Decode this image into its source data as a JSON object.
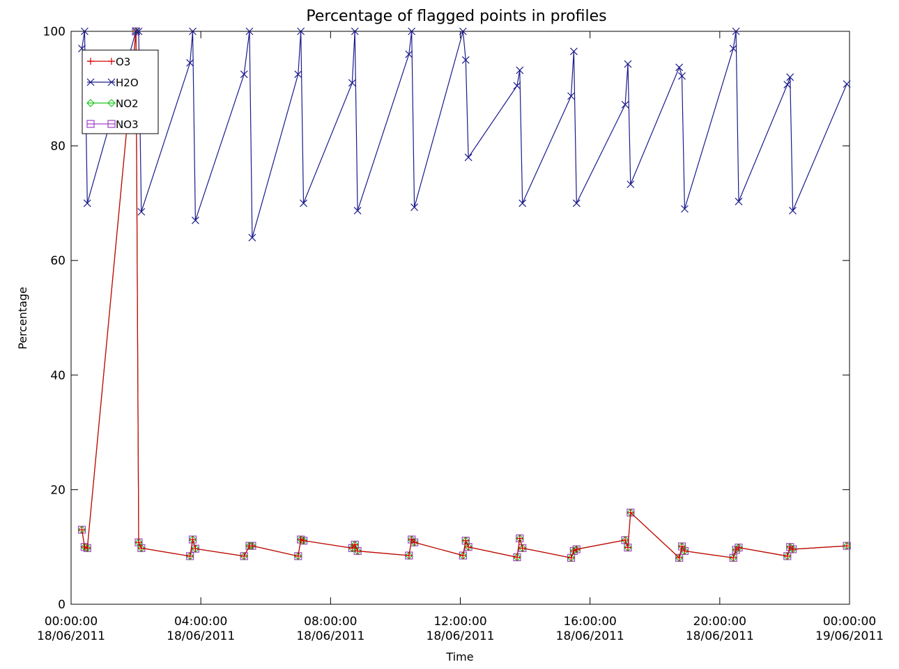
{
  "chart_data": {
    "type": "line",
    "title": "Percentage of flagged points in profiles",
    "xlabel": "Time",
    "ylabel": "Percentage",
    "ylim": [
      0,
      100
    ],
    "xlim": [
      "2011-06-18 00:00",
      "2011-06-19 00:00"
    ],
    "grid": false,
    "legend_position": "top-left",
    "x_ticks": [
      {
        "value": "2011-06-18 00:00",
        "line1": "00:00:00",
        "line2": "18/06/2011"
      },
      {
        "value": "2011-06-18 04:00",
        "line1": "04:00:00",
        "line2": "18/06/2011"
      },
      {
        "value": "2011-06-18 08:00",
        "line1": "08:00:00",
        "line2": "18/06/2011"
      },
      {
        "value": "2011-06-18 12:00",
        "line1": "12:00:00",
        "line2": "18/06/2011"
      },
      {
        "value": "2011-06-18 16:00",
        "line1": "16:00:00",
        "line2": "18/06/2011"
      },
      {
        "value": "2011-06-18 20:00",
        "line1": "20:00:00",
        "line2": "18/06/2011"
      },
      {
        "value": "2011-06-19 00:00",
        "line1": "00:00:00",
        "line2": "19/06/2011"
      }
    ],
    "y_ticks": [
      0,
      20,
      40,
      60,
      80,
      100
    ],
    "series": [
      {
        "name": "O3",
        "color": "#d40000",
        "marker": "plus",
        "points": [
          [
            "2011-06-18 00:20",
            13
          ],
          [
            "2011-06-18 00:25",
            10
          ],
          [
            "2011-06-18 00:30",
            9.8
          ],
          [
            "2011-06-18 02:00",
            100
          ],
          [
            "2011-06-18 02:05",
            10.8
          ],
          [
            "2011-06-18 02:10",
            9.8
          ],
          [
            "2011-06-18 03:40",
            8.4
          ],
          [
            "2011-06-18 03:45",
            11.3
          ],
          [
            "2011-06-18 03:50",
            9.7
          ],
          [
            "2011-06-18 05:20",
            8.4
          ],
          [
            "2011-06-18 05:30",
            10.2
          ],
          [
            "2011-06-18 05:35",
            10.2
          ],
          [
            "2011-06-18 07:00",
            8.4
          ],
          [
            "2011-06-18 07:05",
            11.3
          ],
          [
            "2011-06-18 07:10",
            11.1
          ],
          [
            "2011-06-18 08:40",
            9.8
          ],
          [
            "2011-06-18 08:45",
            10.4
          ],
          [
            "2011-06-18 08:50",
            9.3
          ],
          [
            "2011-06-18 10:25",
            8.5
          ],
          [
            "2011-06-18 10:30",
            11.3
          ],
          [
            "2011-06-18 10:35",
            10.8
          ],
          [
            "2011-06-18 12:05",
            8.5
          ],
          [
            "2011-06-18 12:10",
            11.1
          ],
          [
            "2011-06-18 12:15",
            10
          ],
          [
            "2011-06-18 13:45",
            8.2
          ],
          [
            "2011-06-18 13:50",
            11.5
          ],
          [
            "2011-06-18 13:55",
            9.8
          ],
          [
            "2011-06-18 15:25",
            8.1
          ],
          [
            "2011-06-18 15:30",
            9.3
          ],
          [
            "2011-06-18 15:35",
            9.6
          ],
          [
            "2011-06-18 17:05",
            11.2
          ],
          [
            "2011-06-18 17:10",
            9.9
          ],
          [
            "2011-06-18 17:15",
            16
          ],
          [
            "2011-06-18 18:45",
            8.1
          ],
          [
            "2011-06-18 18:50",
            10.1
          ],
          [
            "2011-06-18 18:55",
            9.3
          ],
          [
            "2011-06-18 20:25",
            8.1
          ],
          [
            "2011-06-18 20:30",
            9.5
          ],
          [
            "2011-06-18 20:35",
            9.9
          ],
          [
            "2011-06-18 22:05",
            8.4
          ],
          [
            "2011-06-18 22:10",
            10
          ],
          [
            "2011-06-18 22:15",
            9.6
          ],
          [
            "2011-06-18 23:55",
            10.2
          ]
        ]
      },
      {
        "name": "H2O",
        "color": "#1a1a8c",
        "marker": "x",
        "points": [
          [
            "2011-06-18 00:20",
            97
          ],
          [
            "2011-06-18 00:25",
            100
          ],
          [
            "2011-06-18 00:30",
            70
          ],
          [
            "2011-06-18 02:00",
            100
          ],
          [
            "2011-06-18 02:05",
            100
          ],
          [
            "2011-06-18 02:10",
            68.5
          ],
          [
            "2011-06-18 03:40",
            94.5
          ],
          [
            "2011-06-18 03:45",
            100
          ],
          [
            "2011-06-18 03:50",
            67
          ],
          [
            "2011-06-18 05:20",
            92.5
          ],
          [
            "2011-06-18 05:30",
            100
          ],
          [
            "2011-06-18 05:35",
            64
          ],
          [
            "2011-06-18 07:00",
            92.5
          ],
          [
            "2011-06-18 07:05",
            100
          ],
          [
            "2011-06-18 07:10",
            70
          ],
          [
            "2011-06-18 08:40",
            91
          ],
          [
            "2011-06-18 08:45",
            100
          ],
          [
            "2011-06-18 08:50",
            68.7
          ],
          [
            "2011-06-18 10:25",
            96
          ],
          [
            "2011-06-18 10:30",
            100
          ],
          [
            "2011-06-18 10:35",
            69.3
          ],
          [
            "2011-06-18 12:05",
            100
          ],
          [
            "2011-06-18 12:10",
            95
          ],
          [
            "2011-06-18 12:15",
            78
          ],
          [
            "2011-06-18 13:45",
            90.5
          ],
          [
            "2011-06-18 13:50",
            93.2
          ],
          [
            "2011-06-18 13:55",
            70
          ],
          [
            "2011-06-18 15:25",
            88.7
          ],
          [
            "2011-06-18 15:30",
            96.5
          ],
          [
            "2011-06-18 15:35",
            70
          ],
          [
            "2011-06-18 17:05",
            87.2
          ],
          [
            "2011-06-18 17:10",
            94.3
          ],
          [
            "2011-06-18 17:15",
            73.3
          ],
          [
            "2011-06-18 18:45",
            93.7
          ],
          [
            "2011-06-18 18:50",
            92.2
          ],
          [
            "2011-06-18 18:55",
            69
          ],
          [
            "2011-06-18 20:25",
            97
          ],
          [
            "2011-06-18 20:30",
            100
          ],
          [
            "2011-06-18 20:35",
            70.3
          ],
          [
            "2011-06-18 22:05",
            90.7
          ],
          [
            "2011-06-18 22:10",
            92
          ],
          [
            "2011-06-18 22:15",
            68.7
          ],
          [
            "2011-06-18 23:55",
            90.8
          ]
        ]
      },
      {
        "name": "NO2",
        "color": "#22c422",
        "marker": "diamond",
        "points": [
          [
            "2011-06-18 00:20",
            13
          ],
          [
            "2011-06-18 00:25",
            10
          ],
          [
            "2011-06-18 00:30",
            9.8
          ],
          [
            "2011-06-18 02:00",
            100
          ],
          [
            "2011-06-18 02:05",
            10.8
          ],
          [
            "2011-06-18 02:10",
            9.8
          ],
          [
            "2011-06-18 03:40",
            8.4
          ],
          [
            "2011-06-18 03:45",
            11.3
          ],
          [
            "2011-06-18 03:50",
            9.7
          ],
          [
            "2011-06-18 05:20",
            8.4
          ],
          [
            "2011-06-18 05:30",
            10.2
          ],
          [
            "2011-06-18 05:35",
            10.2
          ],
          [
            "2011-06-18 07:00",
            8.4
          ],
          [
            "2011-06-18 07:05",
            11.3
          ],
          [
            "2011-06-18 07:10",
            11.1
          ],
          [
            "2011-06-18 08:40",
            9.8
          ],
          [
            "2011-06-18 08:45",
            10.4
          ],
          [
            "2011-06-18 08:50",
            9.3
          ],
          [
            "2011-06-18 10:25",
            8.5
          ],
          [
            "2011-06-18 10:30",
            11.3
          ],
          [
            "2011-06-18 10:35",
            10.8
          ],
          [
            "2011-06-18 12:05",
            8.5
          ],
          [
            "2011-06-18 12:10",
            11.1
          ],
          [
            "2011-06-18 12:15",
            10
          ],
          [
            "2011-06-18 13:45",
            8.2
          ],
          [
            "2011-06-18 13:50",
            11.5
          ],
          [
            "2011-06-18 13:55",
            9.8
          ],
          [
            "2011-06-18 15:25",
            8.1
          ],
          [
            "2011-06-18 15:30",
            9.3
          ],
          [
            "2011-06-18 15:35",
            9.6
          ],
          [
            "2011-06-18 17:05",
            11.2
          ],
          [
            "2011-06-18 17:10",
            9.9
          ],
          [
            "2011-06-18 17:15",
            16
          ],
          [
            "2011-06-18 18:45",
            8.1
          ],
          [
            "2011-06-18 18:50",
            10.1
          ],
          [
            "2011-06-18 18:55",
            9.3
          ],
          [
            "2011-06-18 20:25",
            8.1
          ],
          [
            "2011-06-18 20:30",
            9.5
          ],
          [
            "2011-06-18 20:35",
            9.9
          ],
          [
            "2011-06-18 22:05",
            8.4
          ],
          [
            "2011-06-18 22:10",
            10
          ],
          [
            "2011-06-18 22:15",
            9.6
          ],
          [
            "2011-06-18 23:55",
            10.2
          ]
        ]
      },
      {
        "name": "NO3",
        "color": "#a040c8",
        "marker": "square",
        "points": [
          [
            "2011-06-18 00:20",
            13
          ],
          [
            "2011-06-18 00:25",
            10
          ],
          [
            "2011-06-18 00:30",
            9.8
          ],
          [
            "2011-06-18 02:00",
            100
          ],
          [
            "2011-06-18 02:05",
            10.8
          ],
          [
            "2011-06-18 02:10",
            9.8
          ],
          [
            "2011-06-18 03:40",
            8.4
          ],
          [
            "2011-06-18 03:45",
            11.3
          ],
          [
            "2011-06-18 03:50",
            9.7
          ],
          [
            "2011-06-18 05:20",
            8.4
          ],
          [
            "2011-06-18 05:30",
            10.2
          ],
          [
            "2011-06-18 05:35",
            10.2
          ],
          [
            "2011-06-18 07:00",
            8.4
          ],
          [
            "2011-06-18 07:05",
            11.3
          ],
          [
            "2011-06-18 07:10",
            11.1
          ],
          [
            "2011-06-18 08:40",
            9.8
          ],
          [
            "2011-06-18 08:45",
            10.4
          ],
          [
            "2011-06-18 08:50",
            9.3
          ],
          [
            "2011-06-18 10:25",
            8.5
          ],
          [
            "2011-06-18 10:30",
            11.3
          ],
          [
            "2011-06-18 10:35",
            10.8
          ],
          [
            "2011-06-18 12:05",
            8.5
          ],
          [
            "2011-06-18 12:10",
            11.1
          ],
          [
            "2011-06-18 12:15",
            10
          ],
          [
            "2011-06-18 13:45",
            8.2
          ],
          [
            "2011-06-18 13:50",
            11.5
          ],
          [
            "2011-06-18 13:55",
            9.8
          ],
          [
            "2011-06-18 15:25",
            8.1
          ],
          [
            "2011-06-18 15:30",
            9.3
          ],
          [
            "2011-06-18 15:35",
            9.6
          ],
          [
            "2011-06-18 17:05",
            11.2
          ],
          [
            "2011-06-18 17:10",
            9.9
          ],
          [
            "2011-06-18 17:15",
            16
          ],
          [
            "2011-06-18 18:45",
            8.1
          ],
          [
            "2011-06-18 18:50",
            10.1
          ],
          [
            "2011-06-18 18:55",
            9.3
          ],
          [
            "2011-06-18 20:25",
            8.1
          ],
          [
            "2011-06-18 20:30",
            9.5
          ],
          [
            "2011-06-18 20:35",
            9.9
          ],
          [
            "2011-06-18 22:05",
            8.4
          ],
          [
            "2011-06-18 22:10",
            10
          ],
          [
            "2011-06-18 22:15",
            9.6
          ],
          [
            "2011-06-18 23:55",
            10.2
          ]
        ]
      }
    ]
  }
}
